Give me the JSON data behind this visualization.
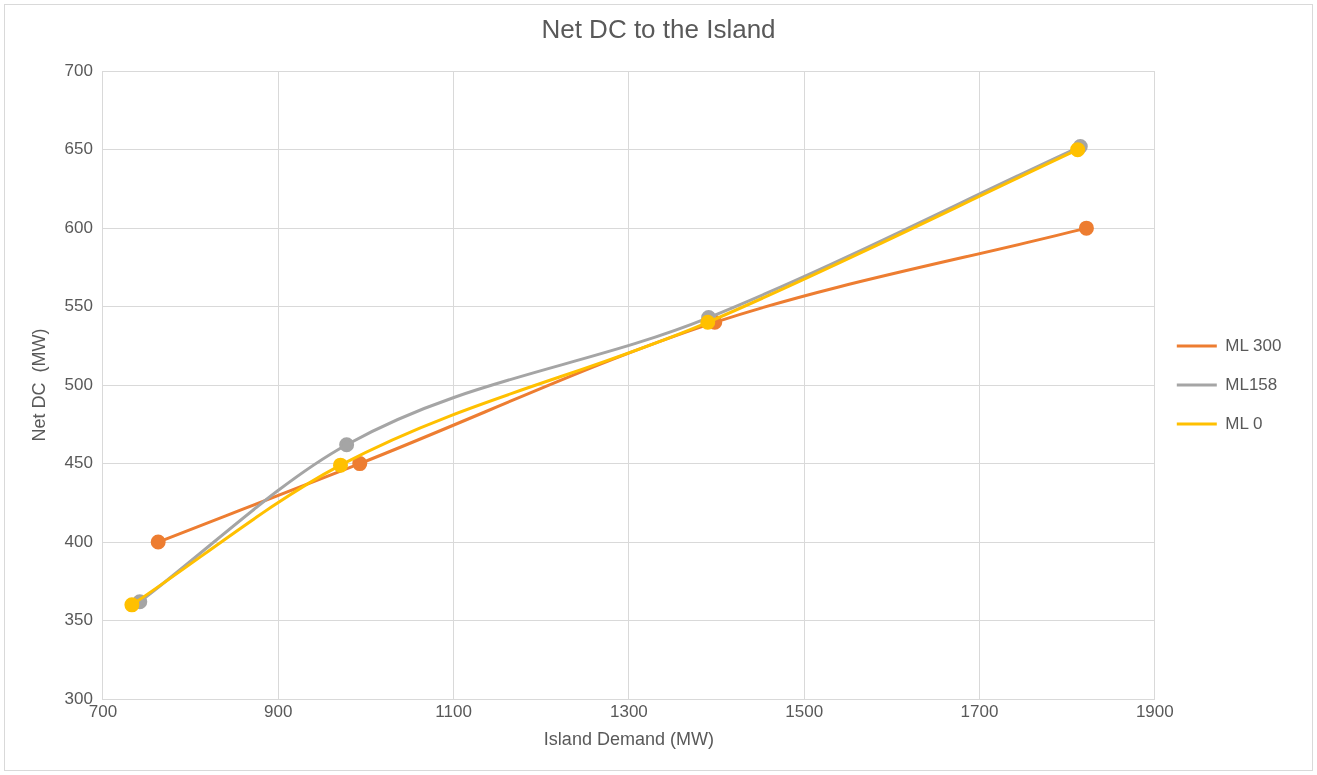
{
  "chart_data": {
    "type": "line",
    "title": "Net DC to the Island",
    "xlabel": "Island Demand (MW)",
    "ylabel": "Net DC  (MW)",
    "xlim": [
      700,
      1900
    ],
    "xticks": [
      700,
      900,
      1100,
      1300,
      1500,
      1700,
      1900
    ],
    "ylim": [
      300,
      700
    ],
    "yticks": [
      300,
      350,
      400,
      450,
      500,
      550,
      600,
      650,
      700
    ],
    "grid": true,
    "legend": "right",
    "marker": "circle",
    "series": [
      {
        "name": "ML 300",
        "color": "#ed7d31",
        "x": [
          763,
          993,
          1398,
          1822
        ],
        "values": [
          400,
          450,
          540,
          600
        ]
      },
      {
        "name": "ML158",
        "color": "#a5a5a5",
        "x": [
          742,
          978,
          1391,
          1815
        ],
        "values": [
          362,
          462,
          543,
          652
        ]
      },
      {
        "name": "ML 0",
        "color": "#ffc000",
        "x": [
          733,
          971,
          1390,
          1812
        ],
        "values": [
          360,
          449,
          540,
          650
        ]
      }
    ]
  }
}
